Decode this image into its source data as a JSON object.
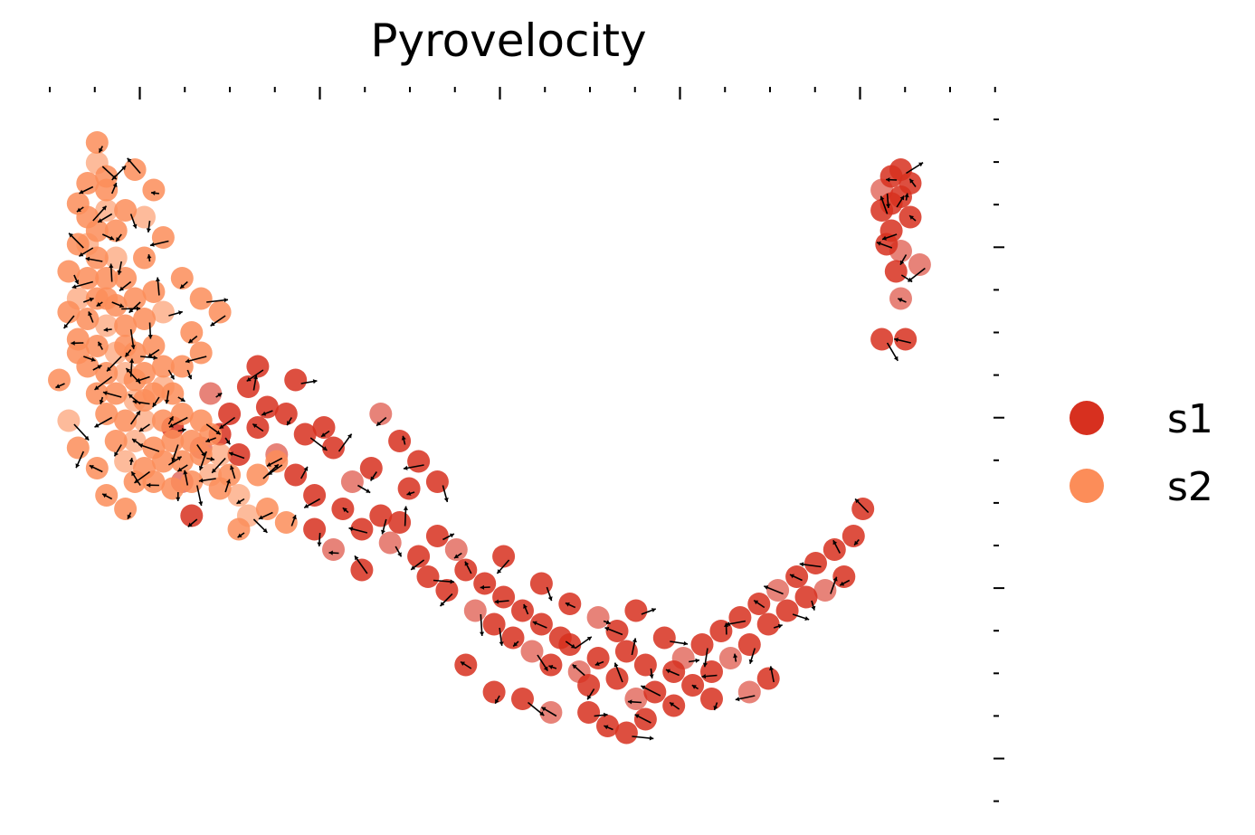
{
  "chart_data": {
    "type": "scatter",
    "title": "Pyrovelocity",
    "xlabel": "",
    "ylabel": "",
    "xlim": [
      0,
      100
    ],
    "ylim": [
      0,
      100
    ],
    "grid": false,
    "legend_position": "right",
    "colors": {
      "s1": "#d7301f",
      "s2": "#fc8d59",
      "arrow": "#000000"
    },
    "series": [
      {
        "name": "s1",
        "points": [
          [
            17,
            58
          ],
          [
            19,
            55
          ],
          [
            21,
            59
          ],
          [
            23,
            56
          ],
          [
            18,
            52
          ],
          [
            16,
            50
          ],
          [
            20,
            49
          ],
          [
            22,
            53
          ],
          [
            25,
            55
          ],
          [
            27,
            52
          ],
          [
            24,
            49
          ],
          [
            26,
            46
          ],
          [
            29,
            53
          ],
          [
            30,
            50
          ],
          [
            28,
            43
          ],
          [
            32,
            45
          ],
          [
            34,
            47
          ],
          [
            31,
            41
          ],
          [
            33,
            38
          ],
          [
            35,
            40
          ],
          [
            36,
            36
          ],
          [
            38,
            44
          ],
          [
            37,
            39
          ],
          [
            39,
            34
          ],
          [
            41,
            37
          ],
          [
            43,
            35
          ],
          [
            40,
            31
          ],
          [
            42,
            29
          ],
          [
            44,
            32
          ],
          [
            46,
            30
          ],
          [
            45,
            26
          ],
          [
            47,
            24
          ],
          [
            48,
            28
          ],
          [
            50,
            26
          ],
          [
            49,
            22
          ],
          [
            51,
            20
          ],
          [
            52,
            24
          ],
          [
            54,
            22
          ],
          [
            53,
            18
          ],
          [
            55,
            21
          ],
          [
            56,
            17
          ],
          [
            57,
            15
          ],
          [
            58,
            19
          ],
          [
            60,
            16
          ],
          [
            61,
            20
          ],
          [
            62,
            13
          ],
          [
            63,
            18
          ],
          [
            64,
            14
          ],
          [
            65,
            22
          ],
          [
            66,
            17
          ],
          [
            67,
            19
          ],
          [
            68,
            15
          ],
          [
            69,
            21
          ],
          [
            70,
            17
          ],
          [
            71,
            23
          ],
          [
            72,
            19
          ],
          [
            73,
            25
          ],
          [
            74,
            21
          ],
          [
            75,
            27
          ],
          [
            76,
            24
          ],
          [
            77,
            29
          ],
          [
            78,
            26
          ],
          [
            79,
            31
          ],
          [
            80,
            28
          ],
          [
            81,
            33
          ],
          [
            82,
            29
          ],
          [
            83,
            35
          ],
          [
            84,
            31
          ],
          [
            85,
            37
          ],
          [
            86,
            41
          ],
          [
            14,
            45
          ],
          [
            15,
            40
          ],
          [
            13,
            53
          ],
          [
            22,
            62
          ],
          [
            26,
            60
          ],
          [
            35,
            55
          ],
          [
            37,
            51
          ],
          [
            39,
            48
          ],
          [
            41,
            45
          ],
          [
            28,
            38
          ],
          [
            30,
            35
          ],
          [
            33,
            32
          ],
          [
            48,
            34
          ],
          [
            52,
            30
          ],
          [
            55,
            27
          ],
          [
            58,
            25
          ],
          [
            60,
            23
          ],
          [
            62,
            26
          ],
          [
            66,
            12
          ],
          [
            70,
            13
          ],
          [
            74,
            14
          ],
          [
            76,
            16
          ],
          [
            44,
            18
          ],
          [
            47,
            14
          ],
          [
            50,
            13
          ],
          [
            53,
            11
          ],
          [
            57,
            11
          ],
          [
            59,
            9
          ],
          [
            61,
            8
          ],
          [
            63,
            10
          ],
          [
            88,
            88
          ],
          [
            89,
            90
          ],
          [
            90,
            87
          ],
          [
            88,
            85
          ],
          [
            89,
            82
          ],
          [
            90,
            79
          ],
          [
            91,
            84
          ],
          [
            90,
            91
          ],
          [
            88.5,
            80
          ],
          [
            89.5,
            76
          ],
          [
            90,
            72
          ],
          [
            88,
            66
          ],
          [
            90.5,
            66
          ],
          [
            89,
            86
          ],
          [
            91,
            89
          ],
          [
            92,
            77
          ]
        ]
      },
      {
        "name": "s2",
        "points": [
          [
            5,
            95
          ],
          [
            5,
            92
          ],
          [
            4,
            89
          ],
          [
            6,
            88
          ],
          [
            3,
            86
          ],
          [
            4,
            84
          ],
          [
            6,
            85
          ],
          [
            5,
            82
          ],
          [
            7,
            82
          ],
          [
            3,
            80
          ],
          [
            5,
            78
          ],
          [
            7,
            78
          ],
          [
            2,
            76
          ],
          [
            4,
            75
          ],
          [
            6,
            75
          ],
          [
            8,
            75
          ],
          [
            3,
            72
          ],
          [
            5,
            72
          ],
          [
            7,
            71
          ],
          [
            9,
            72
          ],
          [
            4,
            69
          ],
          [
            6,
            68
          ],
          [
            8,
            68
          ],
          [
            10,
            69
          ],
          [
            3,
            66
          ],
          [
            5,
            65
          ],
          [
            7,
            64
          ],
          [
            9,
            64
          ],
          [
            11,
            65
          ],
          [
            4,
            62
          ],
          [
            6,
            61
          ],
          [
            8,
            61
          ],
          [
            10,
            61
          ],
          [
            12,
            62
          ],
          [
            5,
            58
          ],
          [
            7,
            58
          ],
          [
            9,
            57
          ],
          [
            11,
            58
          ],
          [
            13,
            58
          ],
          [
            6,
            55
          ],
          [
            8,
            54
          ],
          [
            10,
            54
          ],
          [
            12,
            54
          ],
          [
            14,
            55
          ],
          [
            16,
            54
          ],
          [
            7,
            51
          ],
          [
            9,
            51
          ],
          [
            11,
            50
          ],
          [
            13,
            51
          ],
          [
            15,
            51
          ],
          [
            17,
            52
          ],
          [
            8,
            48
          ],
          [
            10,
            47
          ],
          [
            12,
            48
          ],
          [
            14,
            48
          ],
          [
            16,
            49
          ],
          [
            18,
            49
          ],
          [
            9,
            45
          ],
          [
            11,
            45
          ],
          [
            13,
            44
          ],
          [
            15,
            45
          ],
          [
            17,
            46
          ],
          [
            19,
            46
          ],
          [
            14,
            75
          ],
          [
            16,
            72
          ],
          [
            18,
            70
          ],
          [
            12,
            70
          ],
          [
            15,
            67
          ],
          [
            10,
            78
          ],
          [
            12,
            81
          ],
          [
            8,
            85
          ],
          [
            10,
            84
          ],
          [
            11,
            88
          ],
          [
            9,
            91
          ],
          [
            2,
            70
          ],
          [
            3,
            64
          ],
          [
            20,
            43
          ],
          [
            22,
            46
          ],
          [
            24,
            48
          ],
          [
            18,
            44
          ],
          [
            1,
            60
          ],
          [
            2,
            54
          ],
          [
            3,
            50
          ],
          [
            5,
            47
          ],
          [
            6,
            43
          ],
          [
            8,
            41
          ],
          [
            21,
            40
          ],
          [
            23,
            41
          ],
          [
            25,
            39
          ],
          [
            20,
            38
          ],
          [
            6,
            90
          ],
          [
            4,
            80
          ],
          [
            6,
            72
          ],
          [
            8,
            65
          ],
          [
            9,
            60
          ],
          [
            10,
            57
          ],
          [
            12,
            59
          ],
          [
            14,
            62
          ],
          [
            16,
            64
          ],
          [
            11,
            73
          ]
        ]
      }
    ]
  }
}
